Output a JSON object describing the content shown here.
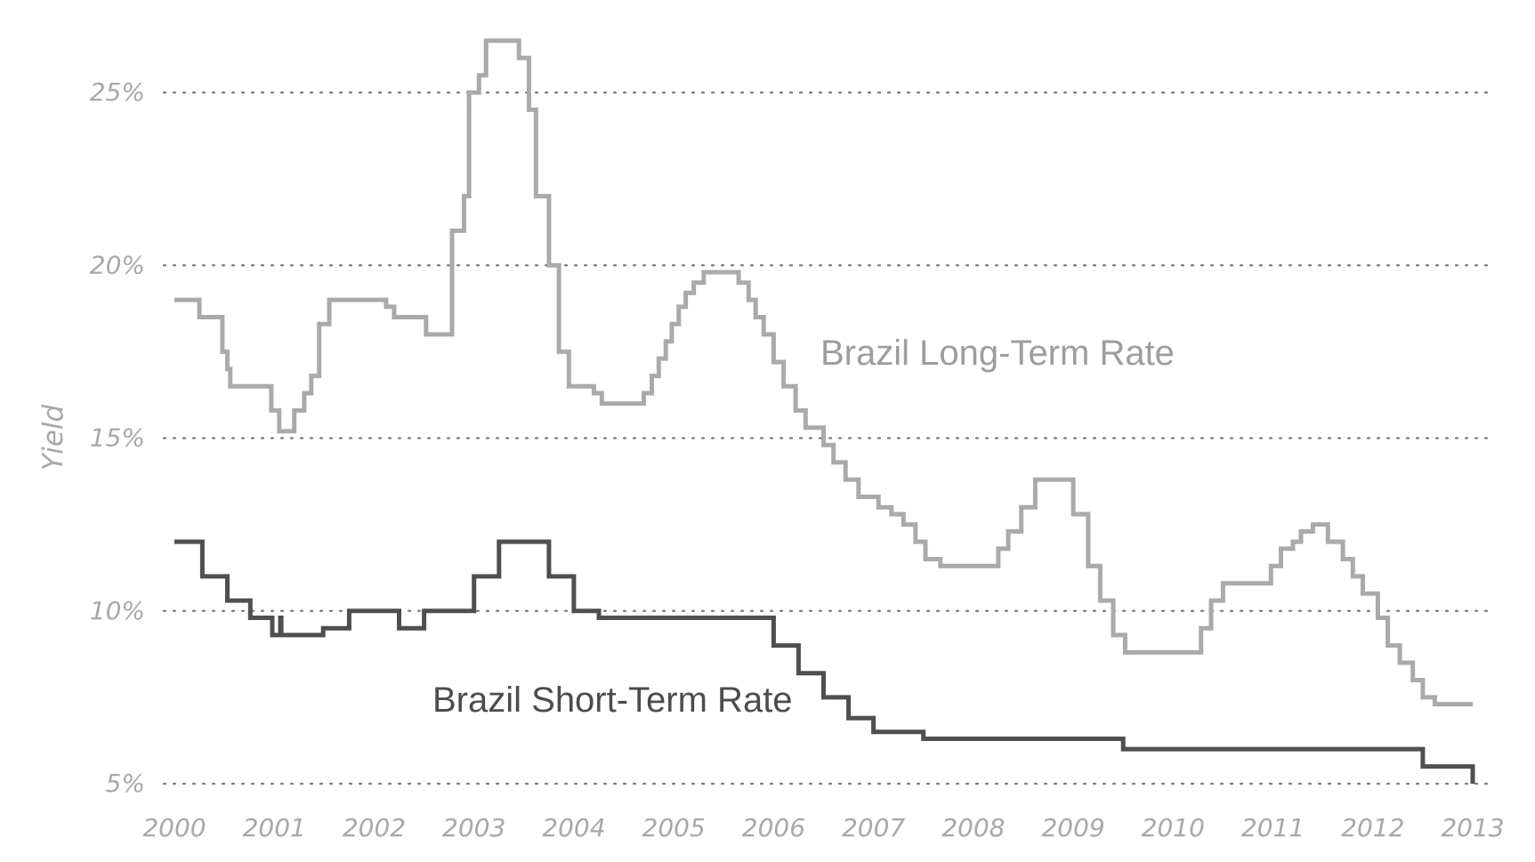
{
  "chart_data": {
    "type": "line",
    "step": true,
    "title": "",
    "xlabel": "",
    "ylabel": "Yield",
    "xlim": [
      2000,
      2013
    ],
    "ylim": [
      5,
      25
    ],
    "grid": true,
    "x_ticks": [
      2000,
      2001,
      2002,
      2003,
      2004,
      2005,
      2006,
      2007,
      2008,
      2009,
      2010,
      2011,
      2012,
      2013
    ],
    "x_tick_labels": [
      "2000",
      "2001",
      "2002",
      "2003",
      "2004",
      "2005",
      "2006",
      "2007",
      "2008",
      "2009",
      "2010",
      "2011",
      "2012",
      "2013"
    ],
    "y_ticks": [
      5,
      10,
      15,
      20,
      25
    ],
    "y_tick_labels": [
      "5%",
      "10%",
      "15%",
      "20%",
      "25%"
    ],
    "series": [
      {
        "name": "Brazil Long-Term Rate",
        "color": "#aaaaaa",
        "label": "Brazil Long-Term Rate",
        "points": [
          [
            2000.0,
            19.0
          ],
          [
            2000.25,
            18.5
          ],
          [
            2000.48,
            17.5
          ],
          [
            2000.53,
            17.0
          ],
          [
            2000.56,
            16.5
          ],
          [
            2000.97,
            15.8
          ],
          [
            2001.05,
            15.2
          ],
          [
            2001.2,
            15.8
          ],
          [
            2001.3,
            16.3
          ],
          [
            2001.37,
            16.8
          ],
          [
            2001.45,
            18.3
          ],
          [
            2001.55,
            19.0
          ],
          [
            2002.12,
            18.8
          ],
          [
            2002.2,
            18.5
          ],
          [
            2002.52,
            18.0
          ],
          [
            2002.78,
            21.0
          ],
          [
            2002.9,
            22.0
          ],
          [
            2002.95,
            25.0
          ],
          [
            2003.05,
            25.5
          ],
          [
            2003.12,
            26.5
          ],
          [
            2003.45,
            26.0
          ],
          [
            2003.55,
            24.5
          ],
          [
            2003.62,
            22.0
          ],
          [
            2003.75,
            20.0
          ],
          [
            2003.85,
            17.5
          ],
          [
            2003.95,
            16.5
          ],
          [
            2004.2,
            16.3
          ],
          [
            2004.28,
            16.0
          ],
          [
            2004.7,
            16.3
          ],
          [
            2004.78,
            16.8
          ],
          [
            2004.85,
            17.3
          ],
          [
            2004.92,
            17.8
          ],
          [
            2004.98,
            18.3
          ],
          [
            2005.05,
            18.8
          ],
          [
            2005.12,
            19.2
          ],
          [
            2005.2,
            19.5
          ],
          [
            2005.3,
            19.8
          ],
          [
            2005.65,
            19.5
          ],
          [
            2005.75,
            19.0
          ],
          [
            2005.82,
            18.5
          ],
          [
            2005.9,
            18.0
          ],
          [
            2006.0,
            17.2
          ],
          [
            2006.1,
            16.5
          ],
          [
            2006.22,
            15.8
          ],
          [
            2006.32,
            15.3
          ],
          [
            2006.5,
            14.8
          ],
          [
            2006.6,
            14.3
          ],
          [
            2006.72,
            13.8
          ],
          [
            2006.85,
            13.3
          ],
          [
            2007.05,
            13.0
          ],
          [
            2007.18,
            12.8
          ],
          [
            2007.3,
            12.5
          ],
          [
            2007.42,
            12.0
          ],
          [
            2007.52,
            11.5
          ],
          [
            2007.67,
            11.3
          ],
          [
            2008.25,
            11.8
          ],
          [
            2008.35,
            12.3
          ],
          [
            2008.48,
            13.0
          ],
          [
            2008.62,
            13.8
          ],
          [
            2009.0,
            12.8
          ],
          [
            2009.15,
            11.3
          ],
          [
            2009.27,
            10.3
          ],
          [
            2009.4,
            9.3
          ],
          [
            2009.52,
            8.8
          ],
          [
            2010.28,
            9.5
          ],
          [
            2010.38,
            10.3
          ],
          [
            2010.5,
            10.8
          ],
          [
            2010.98,
            11.3
          ],
          [
            2011.08,
            11.8
          ],
          [
            2011.2,
            12.0
          ],
          [
            2011.28,
            12.3
          ],
          [
            2011.4,
            12.5
          ],
          [
            2011.55,
            12.0
          ],
          [
            2011.7,
            11.5
          ],
          [
            2011.8,
            11.0
          ],
          [
            2011.9,
            10.5
          ],
          [
            2012.05,
            9.8
          ],
          [
            2012.15,
            9.0
          ],
          [
            2012.27,
            8.5
          ],
          [
            2012.4,
            8.0
          ],
          [
            2012.5,
            7.5
          ],
          [
            2012.62,
            7.3
          ],
          [
            2013.0,
            7.3
          ]
        ]
      },
      {
        "name": "Brazil Short-Term Rate",
        "color": "#4f4f4f",
        "label": "Brazil Short-Term Rate",
        "points": [
          [
            2000.0,
            12.0
          ],
          [
            2000.28,
            11.0
          ],
          [
            2000.53,
            10.3
          ],
          [
            2000.76,
            9.8
          ],
          [
            2000.98,
            9.3
          ],
          [
            2001.06,
            9.8
          ],
          [
            2001.07,
            9.3
          ],
          [
            2001.49,
            9.5
          ],
          [
            2001.75,
            10.0
          ],
          [
            2002.25,
            9.5
          ],
          [
            2002.5,
            10.0
          ],
          [
            2003.0,
            11.0
          ],
          [
            2003.25,
            12.0
          ],
          [
            2003.75,
            11.0
          ],
          [
            2004.0,
            10.0
          ],
          [
            2004.25,
            9.8
          ],
          [
            2006.0,
            9.0
          ],
          [
            2006.25,
            8.2
          ],
          [
            2006.5,
            7.5
          ],
          [
            2006.75,
            6.9
          ],
          [
            2007.0,
            6.5
          ],
          [
            2007.5,
            6.3
          ],
          [
            2009.5,
            6.0
          ],
          [
            2012.5,
            5.5
          ],
          [
            2013.0,
            5.0
          ]
        ]
      }
    ]
  }
}
